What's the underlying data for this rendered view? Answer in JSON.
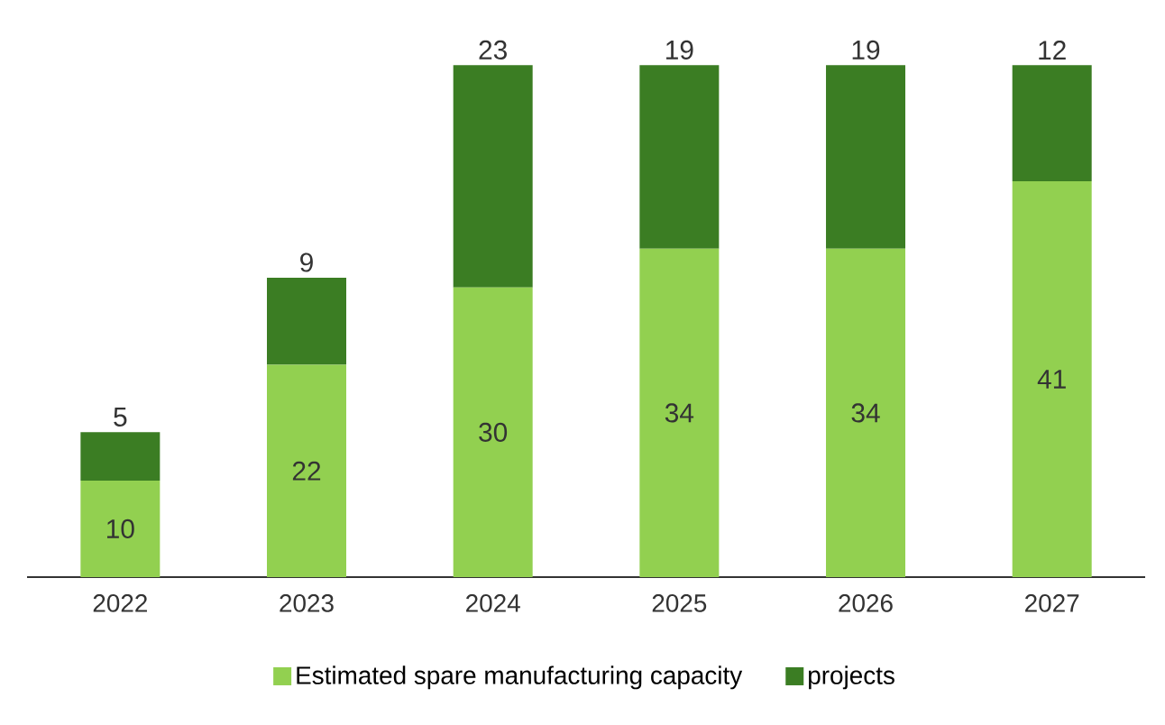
{
  "chart_data": {
    "type": "bar",
    "stacked": true,
    "data_labels": true,
    "legend": "bottom",
    "categories": [
      "2022",
      "2023",
      "2024",
      "2025",
      "2026",
      "2027"
    ],
    "series": [
      {
        "name": "Estimated spare manufacturing capacity",
        "color": "#92d050",
        "values": [
          10,
          22,
          30,
          34,
          34,
          41
        ]
      },
      {
        "name": "projects",
        "color": "#3b7d23",
        "values": [
          5,
          9,
          23,
          19,
          19,
          12
        ]
      }
    ]
  }
}
